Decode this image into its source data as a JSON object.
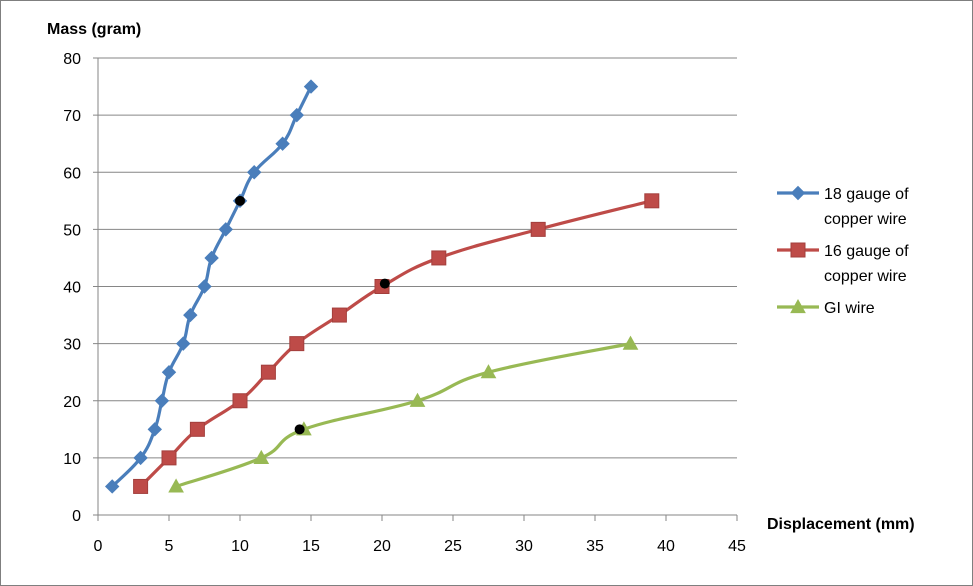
{
  "chart_data": {
    "type": "line",
    "title": "",
    "xlabel": "Displacement (mm)",
    "ylabel": "Mass (gram)",
    "xlim": [
      0,
      45
    ],
    "ylim": [
      0,
      80
    ],
    "x_ticks": [
      0,
      5,
      10,
      15,
      20,
      25,
      30,
      35,
      40,
      45
    ],
    "y_ticks": [
      0,
      10,
      20,
      30,
      40,
      50,
      60,
      70,
      80
    ],
    "grid": "horizontal",
    "legend_position": "right",
    "series": [
      {
        "name_lines": [
          "18 gauge of",
          "copper wire"
        ],
        "color": "#4a7ebb",
        "marker": "diamond",
        "points": [
          [
            1,
            5
          ],
          [
            3,
            10
          ],
          [
            4,
            15
          ],
          [
            4.5,
            20
          ],
          [
            5,
            25
          ],
          [
            6,
            30
          ],
          [
            6.5,
            35
          ],
          [
            7.5,
            40
          ],
          [
            8,
            45
          ],
          [
            9,
            50
          ],
          [
            10,
            55
          ],
          [
            11,
            60
          ],
          [
            13,
            65
          ],
          [
            14,
            70
          ],
          [
            15,
            75
          ]
        ]
      },
      {
        "name_lines": [
          "16 gauge of",
          "copper wire"
        ],
        "color": "#be4b48",
        "marker": "square",
        "points": [
          [
            3,
            5
          ],
          [
            5,
            10
          ],
          [
            7,
            15
          ],
          [
            10,
            20
          ],
          [
            12,
            25
          ],
          [
            14,
            30
          ],
          [
            17,
            35
          ],
          [
            20,
            40
          ],
          [
            24,
            45
          ],
          [
            31,
            50
          ],
          [
            39,
            55
          ]
        ]
      },
      {
        "name_lines": [
          "GI wire"
        ],
        "color": "#98b954",
        "marker": "triangle",
        "points": [
          [
            5.5,
            5
          ],
          [
            11.5,
            10
          ],
          [
            14.5,
            15
          ],
          [
            22.5,
            20
          ],
          [
            27.5,
            25
          ],
          [
            37.5,
            30
          ]
        ]
      }
    ],
    "annotations": [
      {
        "x": 10,
        "y": 55,
        "color": "#000000"
      },
      {
        "x": 20.2,
        "y": 40.5,
        "color": "#000000"
      },
      {
        "x": 14.2,
        "y": 15,
        "color": "#000000"
      }
    ]
  }
}
